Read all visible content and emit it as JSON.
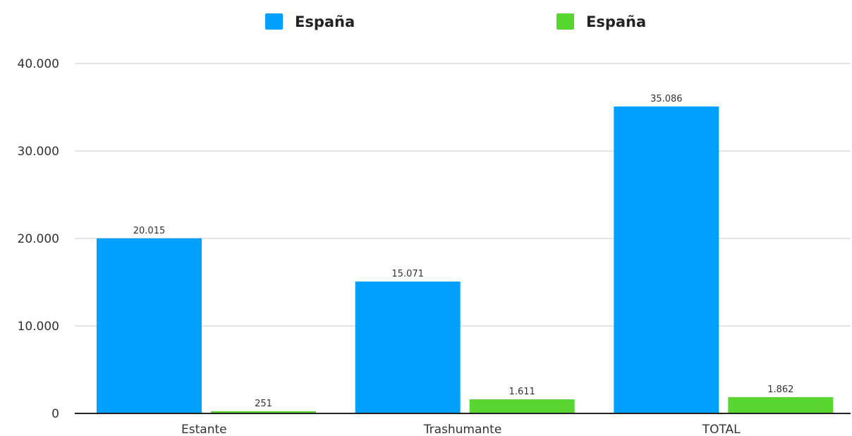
{
  "chart_data": {
    "type": "bar",
    "title": "",
    "xlabel": "",
    "ylabel": "",
    "categories": [
      "Estante",
      "Trashumante",
      "TOTAL"
    ],
    "series": [
      {
        "name": "España",
        "color": "#00a0ff",
        "values": [
          20015,
          15071,
          35086
        ],
        "labels": [
          "20.015",
          "15.071",
          "35.086"
        ]
      },
      {
        "name": "España",
        "color": "#5ad633",
        "values": [
          251,
          1611,
          1862
        ],
        "labels": [
          "251",
          "1.611",
          "1.862"
        ]
      }
    ],
    "ylim": [
      0,
      40000
    ],
    "yticks": [
      0,
      10000,
      20000,
      30000,
      40000
    ],
    "ytick_labels": [
      "0",
      "10.000",
      "20.000",
      "30.000",
      "40.000"
    ],
    "grid": true,
    "legend_position": "top-center"
  }
}
